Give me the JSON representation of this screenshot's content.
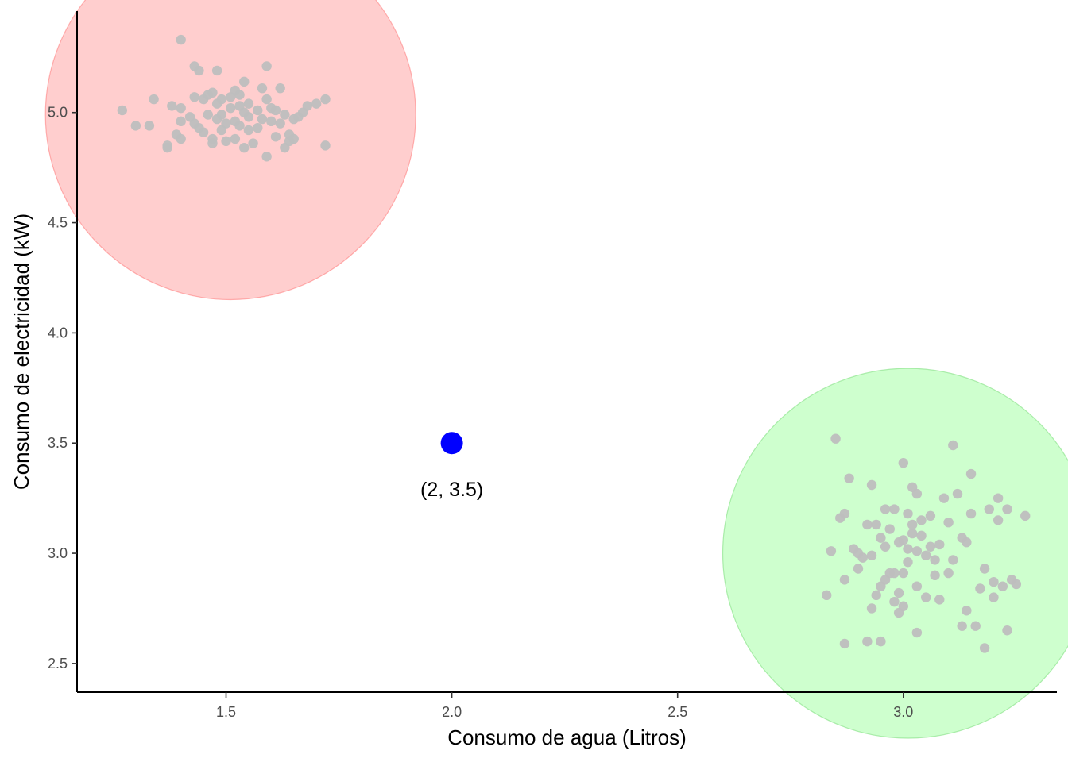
{
  "chart_data": {
    "type": "scatter",
    "title": "",
    "xlabel": "Consumo de agua (Litros)",
    "ylabel": "Consumo de electricidad (kW)",
    "xlim": [
      1.17,
      3.34
    ],
    "ylim": [
      2.37,
      5.46
    ],
    "xticks": [
      1.5,
      2.0,
      2.5,
      3.0
    ],
    "yticks": [
      2.5,
      3.0,
      3.5,
      4.0,
      4.5,
      5.0
    ],
    "xtick_labels": [
      "1.5",
      "2.0",
      "2.5",
      "3.0"
    ],
    "ytick_labels": [
      "2.5",
      "3.0",
      "3.5",
      "4.0",
      "4.5",
      "5.0"
    ],
    "grid": false,
    "colors": {
      "point": "#bebebe",
      "cluster_a_fill": "#ffb3b3",
      "cluster_a_stroke": "#ff8080",
      "cluster_b_fill": "#b3ffb3",
      "cluster_b_stroke": "#80e080",
      "highlight": "#0000ff"
    },
    "clusters": [
      {
        "center": [
          1.51,
          4.99
        ],
        "radius": 0.41,
        "color": "cluster_a",
        "points": [
          [
            1.27,
            5.01
          ],
          [
            1.3,
            4.94
          ],
          [
            1.33,
            4.94
          ],
          [
            1.34,
            5.06
          ],
          [
            1.37,
            4.84
          ],
          [
            1.37,
            4.85
          ],
          [
            1.38,
            5.03
          ],
          [
            1.39,
            4.9
          ],
          [
            1.4,
            4.96
          ],
          [
            1.4,
            5.02
          ],
          [
            1.4,
            4.88
          ],
          [
            1.4,
            5.33
          ],
          [
            1.42,
            4.98
          ],
          [
            1.43,
            5.07
          ],
          [
            1.43,
            5.21
          ],
          [
            1.43,
            4.95
          ],
          [
            1.44,
            5.19
          ],
          [
            1.44,
            4.93
          ],
          [
            1.45,
            5.06
          ],
          [
            1.45,
            4.91
          ],
          [
            1.46,
            5.08
          ],
          [
            1.46,
            4.99
          ],
          [
            1.47,
            5.09
          ],
          [
            1.47,
            4.88
          ],
          [
            1.47,
            4.86
          ],
          [
            1.48,
            5.19
          ],
          [
            1.48,
            4.97
          ],
          [
            1.48,
            5.04
          ],
          [
            1.49,
            4.92
          ],
          [
            1.49,
            5.06
          ],
          [
            1.49,
            4.99
          ],
          [
            1.5,
            4.95
          ],
          [
            1.5,
            4.87
          ],
          [
            1.51,
            5.07
          ],
          [
            1.51,
            5.02
          ],
          [
            1.52,
            4.88
          ],
          [
            1.52,
            5.1
          ],
          [
            1.52,
            4.96
          ],
          [
            1.53,
            5.03
          ],
          [
            1.53,
            4.94
          ],
          [
            1.53,
            5.08
          ],
          [
            1.54,
            5.0
          ],
          [
            1.54,
            5.14
          ],
          [
            1.54,
            4.84
          ],
          [
            1.55,
            4.98
          ],
          [
            1.55,
            5.04
          ],
          [
            1.55,
            4.92
          ],
          [
            1.56,
            4.86
          ],
          [
            1.57,
            5.01
          ],
          [
            1.57,
            4.93
          ],
          [
            1.58,
            5.11
          ],
          [
            1.58,
            4.97
          ],
          [
            1.59,
            5.06
          ],
          [
            1.59,
            5.21
          ],
          [
            1.59,
            4.8
          ],
          [
            1.6,
            5.02
          ],
          [
            1.6,
            4.96
          ],
          [
            1.61,
            4.89
          ],
          [
            1.61,
            5.01
          ],
          [
            1.62,
            5.11
          ],
          [
            1.62,
            4.95
          ],
          [
            1.63,
            4.84
          ],
          [
            1.63,
            4.99
          ],
          [
            1.64,
            4.9
          ],
          [
            1.64,
            4.87
          ],
          [
            1.65,
            4.97
          ],
          [
            1.65,
            4.88
          ],
          [
            1.66,
            4.98
          ],
          [
            1.67,
            5.0
          ],
          [
            1.68,
            5.03
          ],
          [
            1.7,
            5.04
          ],
          [
            1.72,
            4.85
          ],
          [
            1.72,
            5.06
          ]
        ]
      },
      {
        "center": [
          3.01,
          3.0
        ],
        "radius": 0.41,
        "color": "cluster_b",
        "points": [
          [
            2.83,
            2.81
          ],
          [
            2.84,
            3.01
          ],
          [
            2.85,
            3.52
          ],
          [
            2.86,
            3.16
          ],
          [
            2.87,
            3.18
          ],
          [
            2.87,
            2.88
          ],
          [
            2.87,
            2.59
          ],
          [
            2.88,
            3.34
          ],
          [
            2.89,
            3.02
          ],
          [
            2.9,
            3.0
          ],
          [
            2.9,
            2.93
          ],
          [
            2.91,
            2.98
          ],
          [
            2.92,
            3.13
          ],
          [
            2.92,
            2.6
          ],
          [
            2.93,
            3.31
          ],
          [
            2.93,
            2.75
          ],
          [
            2.93,
            2.99
          ],
          [
            2.94,
            3.13
          ],
          [
            2.94,
            2.81
          ],
          [
            2.95,
            3.07
          ],
          [
            2.95,
            2.6
          ],
          [
            2.95,
            2.85
          ],
          [
            2.96,
            3.2
          ],
          [
            2.96,
            3.03
          ],
          [
            2.96,
            2.88
          ],
          [
            2.97,
            3.11
          ],
          [
            2.97,
            2.91
          ],
          [
            2.98,
            3.2
          ],
          [
            2.98,
            2.91
          ],
          [
            2.98,
            2.78
          ],
          [
            2.99,
            3.05
          ],
          [
            2.99,
            2.82
          ],
          [
            2.99,
            2.73
          ],
          [
            3.0,
            3.41
          ],
          [
            3.0,
            2.91
          ],
          [
            3.0,
            3.06
          ],
          [
            3.0,
            2.76
          ],
          [
            3.01,
            3.18
          ],
          [
            3.01,
            3.02
          ],
          [
            3.01,
            2.96
          ],
          [
            3.02,
            3.3
          ],
          [
            3.02,
            3.09
          ],
          [
            3.02,
            3.13
          ],
          [
            3.03,
            3.27
          ],
          [
            3.03,
            2.85
          ],
          [
            3.03,
            3.01
          ],
          [
            3.03,
            2.64
          ],
          [
            3.04,
            3.15
          ],
          [
            3.04,
            3.08
          ],
          [
            3.05,
            2.99
          ],
          [
            3.05,
            2.8
          ],
          [
            3.06,
            3.03
          ],
          [
            3.06,
            3.17
          ],
          [
            3.07,
            2.97
          ],
          [
            3.07,
            2.9
          ],
          [
            3.08,
            3.04
          ],
          [
            3.08,
            2.79
          ],
          [
            3.09,
            3.25
          ],
          [
            3.1,
            2.91
          ],
          [
            3.1,
            3.14
          ],
          [
            3.11,
            3.49
          ],
          [
            3.11,
            2.97
          ],
          [
            3.12,
            3.27
          ],
          [
            3.13,
            2.67
          ],
          [
            3.13,
            3.07
          ],
          [
            3.14,
            2.74
          ],
          [
            3.14,
            3.05
          ],
          [
            3.15,
            3.36
          ],
          [
            3.15,
            3.18
          ],
          [
            3.16,
            2.67
          ],
          [
            3.17,
            2.84
          ],
          [
            3.18,
            2.93
          ],
          [
            3.18,
            2.57
          ],
          [
            3.19,
            3.2
          ],
          [
            3.2,
            2.8
          ],
          [
            3.2,
            2.87
          ],
          [
            3.21,
            3.25
          ],
          [
            3.21,
            3.15
          ],
          [
            3.22,
            2.85
          ],
          [
            3.23,
            2.65
          ],
          [
            3.23,
            3.2
          ],
          [
            3.24,
            2.88
          ],
          [
            3.25,
            2.86
          ],
          [
            3.27,
            3.17
          ]
        ]
      }
    ],
    "highlight_point": {
      "x": 2.0,
      "y": 3.5,
      "label": "(2, 3.5)"
    }
  }
}
